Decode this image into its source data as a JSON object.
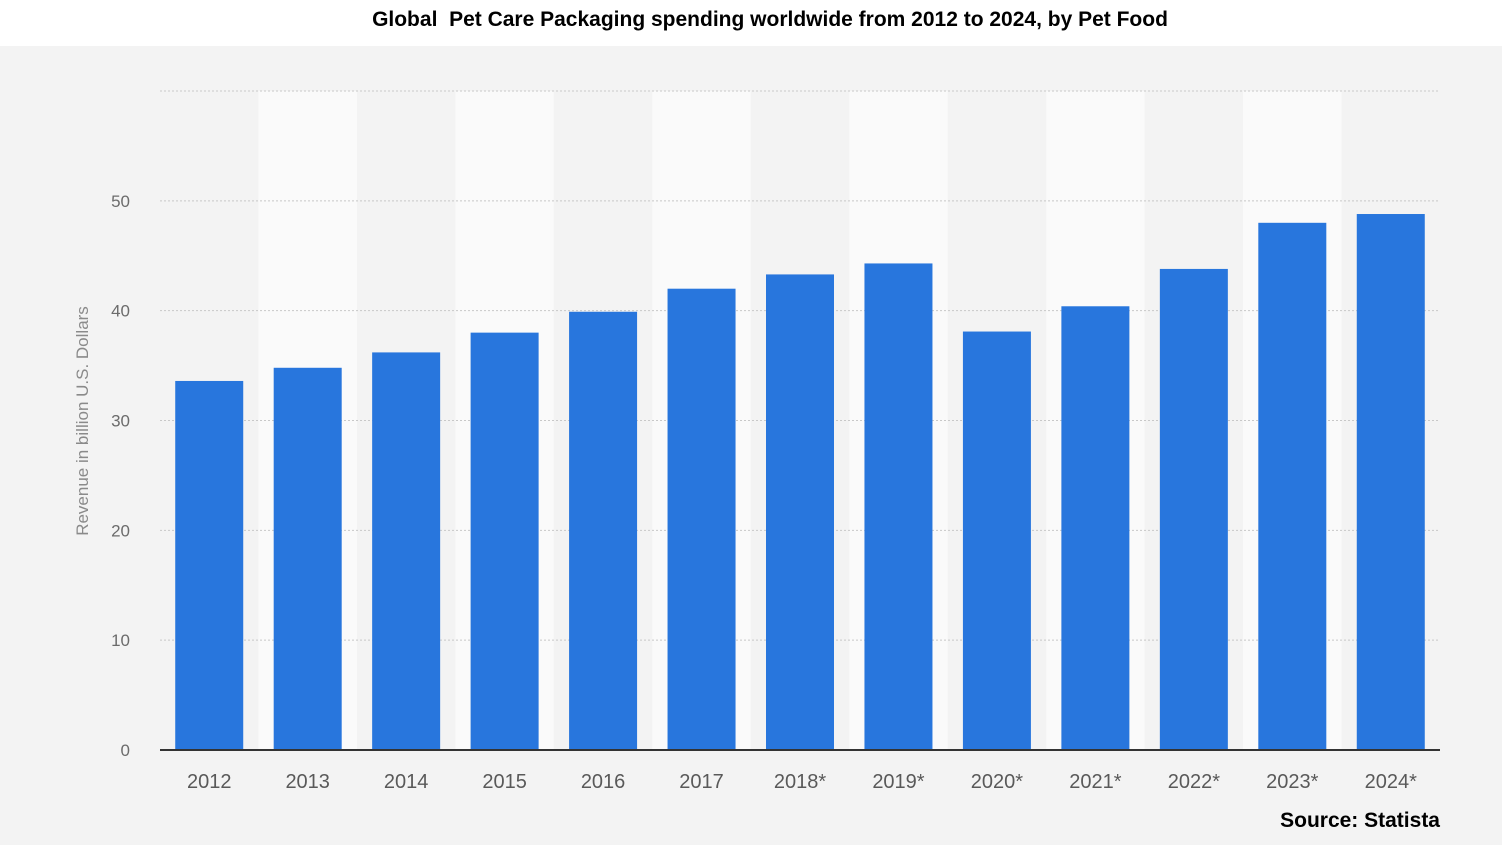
{
  "chart_data": {
    "type": "bar",
    "title": "Global  Pet Care Packaging spending worldwide from 2012 to 2024, by Pet Food",
    "xlabel": "",
    "ylabel": "Revenue in billion U.S. Dollars",
    "categories": [
      "2012",
      "2013",
      "2014",
      "2015",
      "2016",
      "2017",
      "2018*",
      "2019*",
      "2020*",
      "2021*",
      "2022*",
      "2023*",
      "2024*"
    ],
    "values": [
      33.6,
      34.8,
      36.2,
      38.0,
      39.9,
      42.0,
      43.3,
      44.3,
      38.1,
      40.4,
      43.8,
      48.0,
      48.8
    ],
    "ylim": [
      0,
      60
    ],
    "yticks": [
      0,
      10,
      20,
      30,
      40,
      50
    ],
    "grid": true,
    "bar_color": "#2876dd",
    "source": "Source: Statista"
  }
}
